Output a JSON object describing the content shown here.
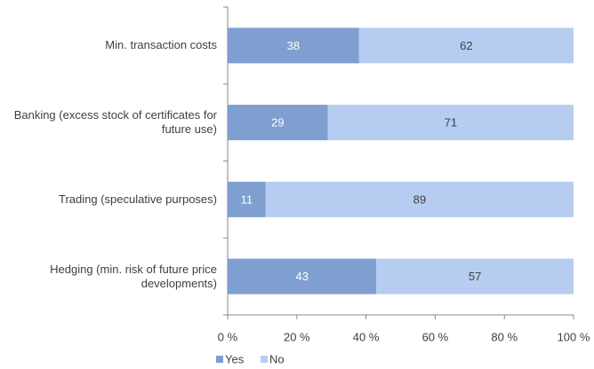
{
  "chart_data": {
    "type": "stacked_barh",
    "categories": [
      "Min. transaction costs",
      "Banking (excess stock of certificates for future use)",
      "Trading (speculative purposes)",
      "Hedging (min. risk of future price developments)"
    ],
    "series": [
      {
        "name": "Yes",
        "color": "#7f9fd0",
        "values": [
          38,
          29,
          11,
          43
        ]
      },
      {
        "name": "No",
        "color": "#b6cdf1",
        "values": [
          62,
          71,
          89,
          57
        ]
      }
    ],
    "xlim": [
      0,
      100
    ],
    "xticks": [
      {
        "value": 0,
        "label": "0 %"
      },
      {
        "value": 20,
        "label": "20 %"
      },
      {
        "value": 40,
        "label": "40 %"
      },
      {
        "value": 60,
        "label": "60 %"
      },
      {
        "value": 80,
        "label": "80 %"
      },
      {
        "value": 100,
        "label": "100 %"
      }
    ],
    "legend": "bottom-left"
  }
}
